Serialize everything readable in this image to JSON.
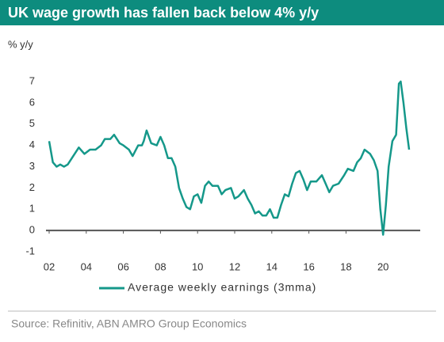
{
  "chart_data": {
    "type": "line",
    "title": "UK wage growth has fallen back below 4% y/y",
    "y_label": "% y/y",
    "source": "Source:  Refinitiv, ABN AMRO Group Economics",
    "x": [
      2002.0,
      2002.2,
      2002.4,
      2002.6,
      2002.8,
      2003.0,
      2003.3,
      2003.6,
      2003.9,
      2004.2,
      2004.5,
      2004.8,
      2005.0,
      2005.3,
      2005.5,
      2005.8,
      2006.0,
      2006.3,
      2006.5,
      2006.8,
      2007.0,
      2007.1,
      2007.25,
      2007.5,
      2007.8,
      2008.0,
      2008.2,
      2008.4,
      2008.6,
      2008.8,
      2009.0,
      2009.2,
      2009.4,
      2009.6,
      2009.8,
      2010.0,
      2010.2,
      2010.4,
      2010.6,
      2010.8,
      2011.1,
      2011.3,
      2011.5,
      2011.8,
      2012.0,
      2012.2,
      2012.5,
      2012.7,
      2012.9,
      2013.1,
      2013.3,
      2013.5,
      2013.7,
      2013.9,
      2014.1,
      2014.3,
      2014.5,
      2014.7,
      2014.9,
      2015.1,
      2015.3,
      2015.5,
      2015.7,
      2015.9,
      2016.1,
      2016.4,
      2016.7,
      2016.9,
      2017.1,
      2017.3,
      2017.6,
      2017.9,
      2018.1,
      2018.4,
      2018.6,
      2018.8,
      2019.0,
      2019.3,
      2019.5,
      2019.7,
      2019.85,
      2020.0,
      2020.15,
      2020.3,
      2020.5,
      2020.7,
      2020.85,
      2020.95,
      2021.1,
      2021.25,
      2021.4
    ],
    "series": [
      {
        "name": "Average weekly earnings (3mma)",
        "color": "#15988a",
        "values": [
          4.2,
          3.2,
          3.0,
          3.1,
          3.0,
          3.1,
          3.5,
          3.9,
          3.6,
          3.8,
          3.8,
          4.0,
          4.3,
          4.3,
          4.5,
          4.1,
          4.0,
          3.8,
          3.5,
          4.0,
          4.0,
          4.2,
          4.7,
          4.1,
          4.0,
          4.4,
          4.0,
          3.4,
          3.4,
          3.0,
          2.0,
          1.5,
          1.1,
          1.0,
          1.6,
          1.7,
          1.3,
          2.1,
          2.3,
          2.1,
          2.1,
          1.7,
          1.9,
          2.0,
          1.5,
          1.6,
          1.9,
          1.5,
          1.2,
          0.8,
          0.9,
          0.7,
          0.7,
          1.0,
          0.6,
          0.6,
          1.2,
          1.7,
          1.6,
          2.2,
          2.7,
          2.8,
          2.4,
          1.9,
          2.3,
          2.3,
          2.6,
          2.2,
          1.8,
          2.1,
          2.2,
          2.6,
          2.9,
          2.8,
          3.2,
          3.4,
          3.8,
          3.6,
          3.3,
          2.8,
          1.0,
          -0.2,
          1.2,
          3.0,
          4.2,
          4.5,
          6.9,
          7.0,
          6.0,
          4.8,
          3.8
        ]
      }
    ],
    "xlim": [
      2002,
      2022
    ],
    "xticks": [
      {
        "value": 2002,
        "label": "02"
      },
      {
        "value": 2004,
        "label": "04"
      },
      {
        "value": 2006,
        "label": "06"
      },
      {
        "value": 2008,
        "label": "08"
      },
      {
        "value": 2010,
        "label": "10"
      },
      {
        "value": 2012,
        "label": "12"
      },
      {
        "value": 2014,
        "label": "14"
      },
      {
        "value": 2016,
        "label": "16"
      },
      {
        "value": 2018,
        "label": "18"
      },
      {
        "value": 2020,
        "label": "20"
      }
    ],
    "ylim": [
      -1,
      7
    ],
    "yticks": [
      -1,
      0,
      1,
      2,
      3,
      4,
      5,
      6,
      7
    ],
    "grid": false
  }
}
